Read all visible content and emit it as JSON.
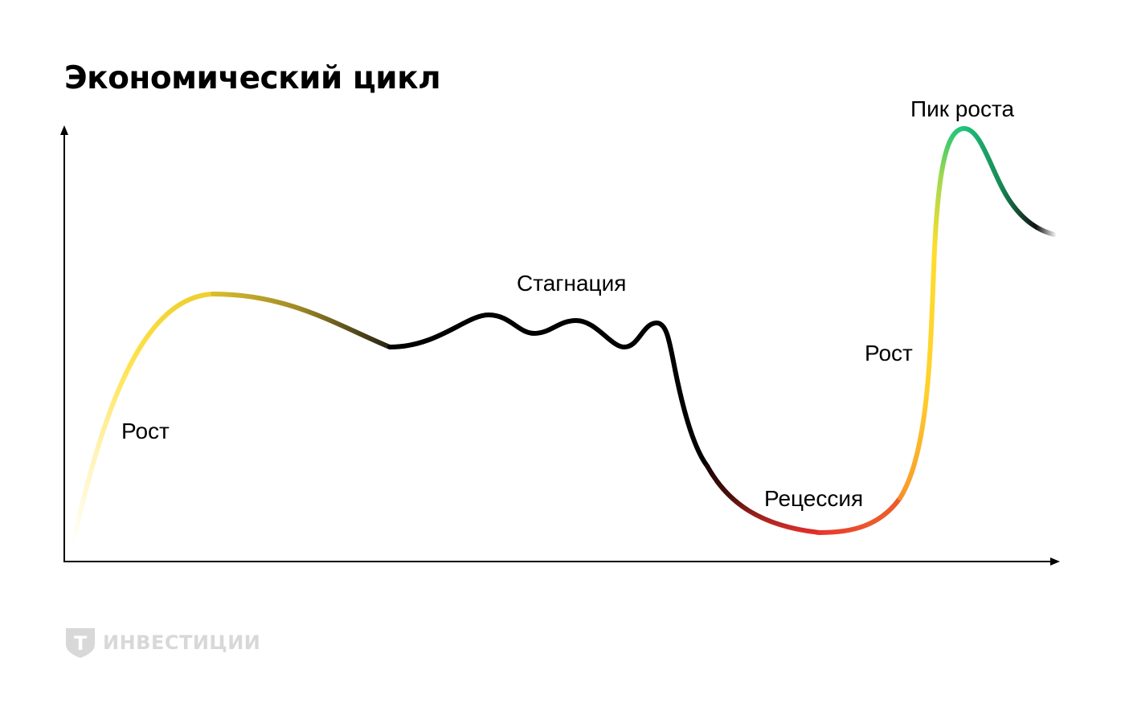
{
  "title": "Экономический цикл",
  "labels": {
    "growth_1": "Рост",
    "stagnation": "Стагнация",
    "recession": "Рецессия",
    "growth_2": "Рост",
    "peak": "Пик роста"
  },
  "logo": {
    "shield_letter": "Т",
    "text": "ИНВЕСТИЦИИ"
  },
  "colors": {
    "yellow": "#ffdd2d",
    "black": "#000000",
    "red": "#e8302c",
    "orange": "#f9a02c",
    "green": "#1ec47c",
    "logo_gray": "#d8d8d8"
  }
}
